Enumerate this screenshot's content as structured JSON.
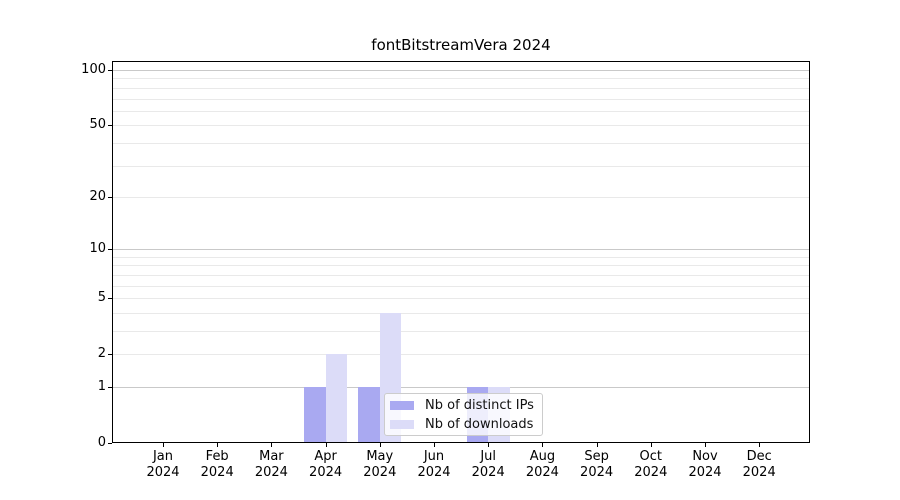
{
  "title": "fontBitstreamVera 2024",
  "colors": {
    "ips_bar": "#a9a9f1",
    "downloads_bar": "#dcdcf8",
    "grid_major": "#c9c9c9",
    "grid_minor": "#e9e9e9",
    "axis": "#000000",
    "legend_border": "#cccccc"
  },
  "legend": {
    "items": [
      {
        "label": "Nb of distinct IPs",
        "color_key": "ips_bar"
      },
      {
        "label": "Nb of downloads",
        "color_key": "downloads_bar"
      }
    ]
  },
  "x_axis": {
    "months": [
      "Jan",
      "Feb",
      "Mar",
      "Apr",
      "May",
      "Jun",
      "Jul",
      "Aug",
      "Sep",
      "Oct",
      "Nov",
      "Dec"
    ],
    "year": "2024"
  },
  "chart_data": {
    "type": "bar",
    "title": "fontBitstreamVera 2024",
    "categories": [
      "Jan 2024",
      "Feb 2024",
      "Mar 2024",
      "Apr 2024",
      "May 2024",
      "Jun 2024",
      "Jul 2024",
      "Aug 2024",
      "Sep 2024",
      "Oct 2024",
      "Nov 2024",
      "Dec 2024"
    ],
    "series": [
      {
        "name": "Nb of distinct IPs",
        "color_key": "ips_bar",
        "values": [
          0,
          0,
          0,
          1,
          1,
          0,
          1,
          0,
          0,
          0,
          0,
          0
        ]
      },
      {
        "name": "Nb of downloads",
        "color_key": "downloads_bar",
        "values": [
          0,
          0,
          0,
          2,
          4,
          0,
          1,
          0,
          0,
          0,
          0,
          0
        ]
      }
    ],
    "y_scale": "log1p",
    "y_ticks": [
      100,
      50,
      20,
      10,
      5,
      2,
      1,
      0
    ],
    "y_major_gridlines": [
      1,
      10,
      100
    ],
    "y_minor_gridlines": [
      2,
      3,
      4,
      5,
      6,
      7,
      8,
      9,
      20,
      30,
      40,
      50,
      60,
      70,
      80,
      90
    ],
    "ylim": [
      0,
      112
    ],
    "grid": true,
    "legend_position": "inside lower center-right",
    "xlabel": "",
    "ylabel": ""
  }
}
